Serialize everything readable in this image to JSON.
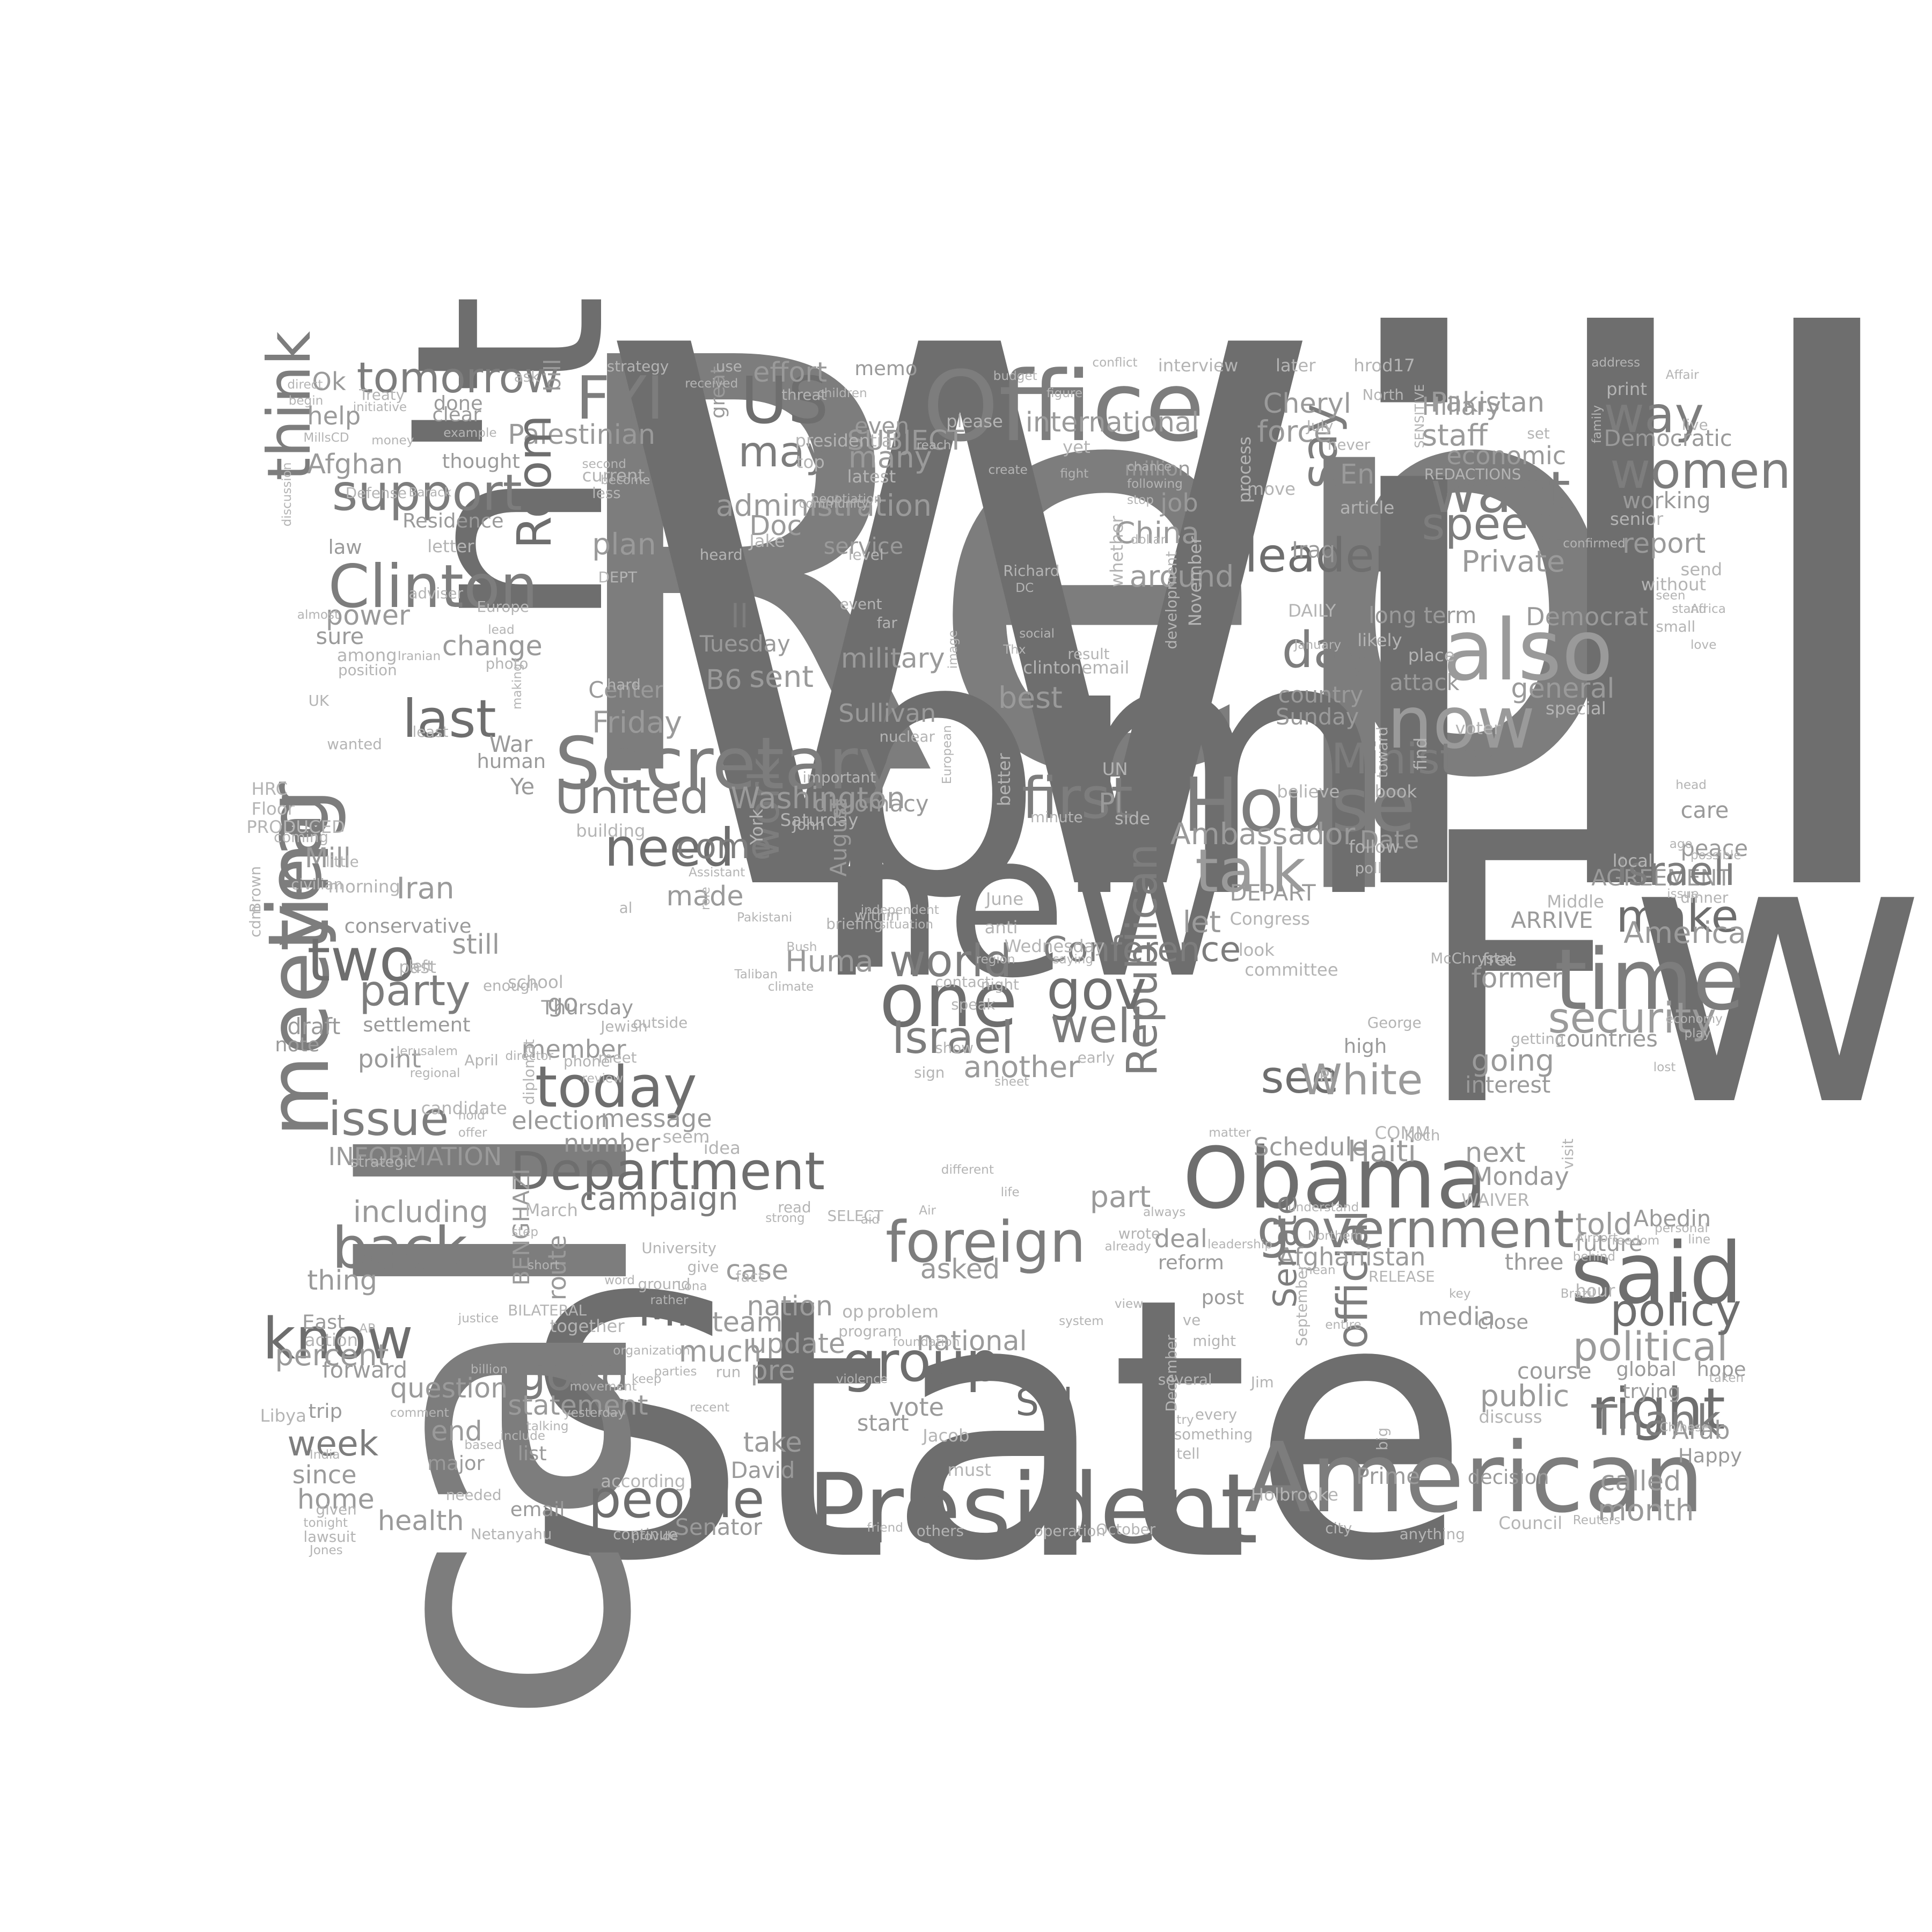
{
  "colors": {
    "background": "#ffffff",
    "tone_dark": "#6e6e6e",
    "tone_mid": "#7d7d7d",
    "tone_light": "#9a9a9a",
    "tone_faint": "#b4b4b4"
  },
  "words": [
    {
      "text": "State"
    },
    {
      "text": "Rep"
    },
    {
      "text": "Will"
    },
    {
      "text": "Fw"
    },
    {
      "text": "call"
    },
    {
      "text": "n't"
    },
    {
      "text": "pm"
    },
    {
      "text": "new"
    },
    {
      "text": "Office"
    },
    {
      "text": "President"
    },
    {
      "text": "American"
    },
    {
      "text": "Secretary"
    },
    {
      "text": "House"
    },
    {
      "text": "Obama"
    },
    {
      "text": "also"
    },
    {
      "text": "now"
    },
    {
      "text": "said"
    },
    {
      "text": "time"
    },
    {
      "text": "one"
    },
    {
      "text": "year"
    },
    {
      "text": "meeting"
    },
    {
      "text": "US"
    },
    {
      "text": "FYI"
    },
    {
      "text": "Clinton"
    },
    {
      "text": "think"
    },
    {
      "text": "tomorrow"
    },
    {
      "text": "first"
    },
    {
      "text": "Department"
    },
    {
      "text": "government"
    },
    {
      "text": "foreign"
    },
    {
      "text": "today"
    },
    {
      "text": "people"
    },
    {
      "text": "right"
    },
    {
      "text": "back"
    },
    {
      "text": "know"
    },
    {
      "text": "issue"
    },
    {
      "text": "two"
    },
    {
      "text": "last"
    },
    {
      "text": "support"
    },
    {
      "text": "want"
    },
    {
      "text": "speech"
    },
    {
      "text": "women"
    },
    {
      "text": "way"
    },
    {
      "text": "say"
    },
    {
      "text": "talk"
    },
    {
      "text": "need"
    },
    {
      "text": "United"
    },
    {
      "text": "leader"
    },
    {
      "text": "day"
    },
    {
      "text": "Minister"
    },
    {
      "text": "security"
    },
    {
      "text": "political"
    },
    {
      "text": "policy"
    },
    {
      "text": "group"
    },
    {
      "text": "Republican"
    },
    {
      "text": "official"
    },
    {
      "text": "party"
    },
    {
      "text": "gov"
    },
    {
      "text": "world"
    },
    {
      "text": "Israel"
    },
    {
      "text": "well"
    },
    {
      "text": "make"
    },
    {
      "text": "see"
    },
    {
      "text": "White"
    },
    {
      "text": "good"
    },
    {
      "text": "week"
    },
    {
      "text": "may"
    },
    {
      "text": "work"
    },
    {
      "text": "Mr"
    },
    {
      "text": "Thank"
    },
    {
      "text": "Sid"
    },
    {
      "text": "Palestinian"
    },
    {
      "text": "effort"
    },
    {
      "text": "memo"
    },
    {
      "text": "even"
    },
    {
      "text": "administration"
    },
    {
      "text": "international"
    },
    {
      "text": "Hillary"
    },
    {
      "text": "Pakistan"
    },
    {
      "text": "Cheryl"
    },
    {
      "text": "staff"
    },
    {
      "text": "economic"
    },
    {
      "text": "Democratic"
    },
    {
      "text": "working"
    },
    {
      "text": "report"
    },
    {
      "text": "senior"
    },
    {
      "text": "Private"
    },
    {
      "text": "Democrat"
    },
    {
      "text": "long term"
    },
    {
      "text": "general"
    },
    {
      "text": "country"
    },
    {
      "text": "attack"
    },
    {
      "text": "Sunday"
    },
    {
      "text": "special"
    },
    {
      "text": "Ambassador"
    },
    {
      "text": "Date"
    },
    {
      "text": "DEPART"
    },
    {
      "text": "AGREEMENT"
    },
    {
      "text": "ARRIVE"
    },
    {
      "text": "America"
    },
    {
      "text": "former"
    },
    {
      "text": "McChrystal"
    },
    {
      "text": "countries"
    },
    {
      "text": "interest"
    },
    {
      "text": "going"
    },
    {
      "text": "Haiti"
    },
    {
      "text": "Schedule"
    },
    {
      "text": "next"
    },
    {
      "text": "Monday"
    },
    {
      "text": "WAIVER"
    },
    {
      "text": "Abedin"
    },
    {
      "text": "told"
    },
    {
      "text": "future"
    },
    {
      "text": "Afghanistan"
    },
    {
      "text": "three"
    },
    {
      "text": "deal"
    },
    {
      "text": "reform"
    },
    {
      "text": "post"
    },
    {
      "text": "part"
    },
    {
      "text": "public"
    },
    {
      "text": "course"
    },
    {
      "text": "called"
    },
    {
      "text": "month"
    },
    {
      "text": "media"
    },
    {
      "text": "Senate"
    },
    {
      "text": "September"
    },
    {
      "text": "December"
    },
    {
      "text": "Holbrooke"
    },
    {
      "text": "Council"
    },
    {
      "text": "Reuters"
    },
    {
      "text": "decision"
    },
    {
      "text": "Prime"
    },
    {
      "text": "Arab"
    },
    {
      "text": "Happy"
    },
    {
      "text": "global"
    },
    {
      "text": "hope"
    },
    {
      "text": "Washington"
    },
    {
      "text": "Friday"
    },
    {
      "text": "Center"
    },
    {
      "text": "Tuesday"
    },
    {
      "text": "B6"
    },
    {
      "text": "ll"
    },
    {
      "text": "sent"
    },
    {
      "text": "plan"
    },
    {
      "text": "Doc"
    },
    {
      "text": "Jake"
    },
    {
      "text": "SUBJECT"
    },
    {
      "text": "many"
    },
    {
      "text": "service"
    },
    {
      "text": "military"
    },
    {
      "text": "Sullivan"
    },
    {
      "text": "best"
    },
    {
      "text": "Pl"
    },
    {
      "text": "China"
    },
    {
      "text": "around"
    },
    {
      "text": "job"
    },
    {
      "text": "force"
    },
    {
      "text": "En"
    },
    {
      "text": "Iraq"
    },
    {
      "text": "DAILY"
    },
    {
      "text": "million"
    },
    {
      "text": "Room"
    },
    {
      "text": "come"
    },
    {
      "text": "made"
    },
    {
      "text": "Huma"
    },
    {
      "text": "Conference"
    },
    {
      "text": "let"
    },
    {
      "text": "another"
    },
    {
      "text": "Israeli"
    },
    {
      "text": "campaign"
    },
    {
      "text": "election"
    },
    {
      "text": "message"
    },
    {
      "text": "number"
    },
    {
      "text": "INFORMATION"
    },
    {
      "text": "including"
    },
    {
      "text": "thing"
    },
    {
      "text": "percent"
    },
    {
      "text": "forward"
    },
    {
      "text": "question"
    },
    {
      "text": "statement"
    },
    {
      "text": "end"
    },
    {
      "text": "since"
    },
    {
      "text": "home"
    },
    {
      "text": "health"
    },
    {
      "text": "email"
    },
    {
      "text": "Senator"
    },
    {
      "text": "David"
    },
    {
      "text": "take"
    },
    {
      "text": "pre"
    },
    {
      "text": "update"
    },
    {
      "text": "much"
    },
    {
      "text": "nation"
    },
    {
      "text": "case"
    },
    {
      "text": "asked"
    },
    {
      "text": "team"
    },
    {
      "text": "national"
    },
    {
      "text": "vote"
    },
    {
      "text": "start"
    },
    {
      "text": "BENGHAZI"
    },
    {
      "text": "route"
    },
    {
      "text": "Afghan"
    },
    {
      "text": "power"
    },
    {
      "text": "sure"
    },
    {
      "text": "help"
    },
    {
      "text": "Residence"
    },
    {
      "text": "change"
    },
    {
      "text": "War"
    },
    {
      "text": "Iran"
    },
    {
      "text": "Mill"
    },
    {
      "text": "still"
    },
    {
      "text": "conservative"
    },
    {
      "text": "point"
    },
    {
      "text": "member"
    },
    {
      "text": "Thursday"
    },
    {
      "text": "draft"
    },
    {
      "text": "settlement"
    },
    {
      "text": "note"
    },
    {
      "text": "morning"
    },
    {
      "text": "go"
    },
    {
      "text": "Ok"
    },
    {
      "text": "done"
    },
    {
      "text": "thought"
    },
    {
      "text": "letter"
    },
    {
      "text": "bill"
    },
    {
      "text": "great"
    },
    {
      "text": "HRC"
    },
    {
      "text": "Floor"
    },
    {
      "text": "PRODUCED"
    },
    {
      "text": "Ye"
    },
    {
      "text": "clear"
    },
    {
      "text": "law"
    },
    {
      "text": "among"
    },
    {
      "text": "position"
    },
    {
      "text": "UK"
    },
    {
      "text": "wanted"
    },
    {
      "text": "human"
    },
    {
      "text": "strategy"
    },
    {
      "text": "use"
    },
    {
      "text": "presidential"
    },
    {
      "text": "top"
    },
    {
      "text": "latest"
    },
    {
      "text": "please"
    },
    {
      "text": "yet"
    },
    {
      "text": "level"
    },
    {
      "text": "event"
    },
    {
      "text": "far"
    },
    {
      "text": "nuclear"
    },
    {
      "text": "important"
    },
    {
      "text": "diplomacy"
    },
    {
      "text": "Saturday"
    },
    {
      "text": "York"
    },
    {
      "text": "John"
    },
    {
      "text": "al"
    },
    {
      "text": "building"
    },
    {
      "text": "hard"
    },
    {
      "text": "August"
    },
    {
      "text": "June"
    },
    {
      "text": "anti"
    },
    {
      "text": "Wednesday"
    },
    {
      "text": "night"
    },
    {
      "text": "show"
    },
    {
      "text": "speak"
    },
    {
      "text": "better"
    },
    {
      "text": "minute"
    },
    {
      "text": "side"
    },
    {
      "text": "UN"
    },
    {
      "text": "clintonemail"
    },
    {
      "text": "whether"
    },
    {
      "text": "development"
    },
    {
      "text": "November"
    },
    {
      "text": "process"
    },
    {
      "text": "later"
    },
    {
      "text": "hrod17"
    },
    {
      "text": "North"
    },
    {
      "text": "July"
    },
    {
      "text": "never"
    },
    {
      "text": "article"
    },
    {
      "text": "move"
    },
    {
      "text": "poll"
    },
    {
      "text": "follow"
    },
    {
      "text": "believe"
    },
    {
      "text": "book"
    },
    {
      "text": "find"
    },
    {
      "text": "toward"
    },
    {
      "text": "place"
    },
    {
      "text": "likely"
    },
    {
      "text": "voter"
    },
    {
      "text": "care"
    },
    {
      "text": "peace"
    },
    {
      "text": "local"
    },
    {
      "text": "possible"
    },
    {
      "text": "Middle"
    },
    {
      "text": "dinner"
    },
    {
      "text": "free"
    },
    {
      "text": "committee"
    },
    {
      "text": "Congress"
    },
    {
      "text": "look"
    },
    {
      "text": "high"
    },
    {
      "text": "George"
    },
    {
      "text": "Koch"
    },
    {
      "text": "visit"
    },
    {
      "text": "close"
    },
    {
      "text": "trying"
    },
    {
      "text": "discuss"
    },
    {
      "text": "hour"
    },
    {
      "text": "print"
    },
    {
      "text": "live"
    },
    {
      "text": "address"
    },
    {
      "text": "set"
    },
    {
      "text": "family"
    },
    {
      "text": "send"
    },
    {
      "text": "without"
    },
    {
      "text": "small"
    },
    {
      "text": "REDACTIONS"
    },
    {
      "text": "SENSITIVE"
    },
    {
      "text": "confirmed"
    },
    {
      "text": "Libya"
    },
    {
      "text": "trip"
    },
    {
      "text": "comment"
    },
    {
      "text": "major"
    },
    {
      "text": "list"
    },
    {
      "text": "according"
    },
    {
      "text": "continue"
    },
    {
      "text": "Netanyahu"
    },
    {
      "text": "given"
    },
    {
      "text": "idea"
    },
    {
      "text": "seem"
    },
    {
      "text": "March"
    },
    {
      "text": "BILATERAL"
    },
    {
      "text": "together"
    },
    {
      "text": "East"
    },
    {
      "text": "action"
    },
    {
      "text": "candidate"
    },
    {
      "text": "strategic"
    },
    {
      "text": "school"
    },
    {
      "text": "enough"
    },
    {
      "text": "left"
    },
    {
      "text": "past"
    },
    {
      "text": "coming"
    },
    {
      "text": "little"
    },
    {
      "text": "civilian"
    },
    {
      "text": "Brown"
    },
    {
      "text": "cdm"
    },
    {
      "text": "Defense"
    },
    {
      "text": "Treaty"
    },
    {
      "text": "initiative"
    },
    {
      "text": "ask"
    },
    {
      "text": "example"
    },
    {
      "text": "MillsCD"
    },
    {
      "text": "money"
    },
    {
      "text": "Barack"
    },
    {
      "text": "adviser"
    },
    {
      "text": "Europe"
    },
    {
      "text": "photo"
    },
    {
      "text": "lead"
    },
    {
      "text": "least"
    },
    {
      "text": "Iranian"
    },
    {
      "text": "making"
    },
    {
      "text": "received"
    },
    {
      "text": "threat"
    },
    {
      "text": "children"
    },
    {
      "text": "budget"
    },
    {
      "text": "figure"
    },
    {
      "text": "reach"
    },
    {
      "text": "create"
    },
    {
      "text": "following"
    },
    {
      "text": "stop"
    },
    {
      "text": "chance"
    },
    {
      "text": "dollar"
    },
    {
      "text": "conflict"
    },
    {
      "text": "interview"
    },
    {
      "text": "fight"
    },
    {
      "text": "European"
    },
    {
      "text": "Bush"
    },
    {
      "text": "Assistant"
    },
    {
      "text": "Jerusalem"
    },
    {
      "text": "regional"
    },
    {
      "text": "April"
    },
    {
      "text": "phone"
    },
    {
      "text": "diplomat"
    },
    {
      "text": "Jewish"
    },
    {
      "text": "outside"
    },
    {
      "text": "meet"
    },
    {
      "text": "director"
    },
    {
      "text": "review"
    },
    {
      "text": "read"
    },
    {
      "text": "SELECT"
    },
    {
      "text": "strong"
    },
    {
      "text": "Lona"
    },
    {
      "text": "rather"
    },
    {
      "text": "word"
    },
    {
      "text": "University"
    },
    {
      "text": "ground"
    },
    {
      "text": "give"
    },
    {
      "text": "fact"
    },
    {
      "text": "run"
    },
    {
      "text": "recent"
    },
    {
      "text": "keep"
    },
    {
      "text": "parties"
    },
    {
      "text": "op"
    },
    {
      "text": "problem"
    },
    {
      "text": "program"
    },
    {
      "text": "foundation"
    },
    {
      "text": "violence"
    },
    {
      "text": "Jacob"
    },
    {
      "text": "must"
    },
    {
      "text": "others"
    },
    {
      "text": "operation"
    },
    {
      "text": "friend"
    },
    {
      "text": "October"
    },
    {
      "text": "something"
    },
    {
      "text": "every"
    },
    {
      "text": "several"
    },
    {
      "text": "try"
    },
    {
      "text": "tell"
    },
    {
      "text": "might"
    },
    {
      "text": "ve"
    },
    {
      "text": "Jim"
    },
    {
      "text": "city"
    },
    {
      "text": "anything"
    },
    {
      "text": "big"
    },
    {
      "text": "mean"
    },
    {
      "text": "RELEASE"
    },
    {
      "text": "COMM"
    },
    {
      "text": "Pi"
    },
    {
      "text": "leadership"
    },
    {
      "text": "view"
    },
    {
      "text": "system"
    },
    {
      "text": "wrote"
    },
    {
      "text": "already"
    },
    {
      "text": "life"
    },
    {
      "text": "different"
    },
    {
      "text": "aid"
    },
    {
      "text": "Air"
    },
    {
      "text": "always"
    },
    {
      "text": "matter"
    },
    {
      "text": "understand"
    },
    {
      "text": "Northern"
    },
    {
      "text": "getting"
    },
    {
      "text": "economy"
    },
    {
      "text": "play"
    },
    {
      "text": "lost"
    },
    {
      "text": "Chinese"
    },
    {
      "text": "taken"
    },
    {
      "text": "Airport"
    },
    {
      "text": "behind"
    },
    {
      "text": "freedom"
    },
    {
      "text": "personal"
    },
    {
      "text": "line"
    },
    {
      "text": "head"
    },
    {
      "text": "ago"
    },
    {
      "text": "issue"
    },
    {
      "text": "entire"
    },
    {
      "text": "Brazil"
    },
    {
      "text": "key"
    },
    {
      "text": "current"
    },
    {
      "text": "second"
    },
    {
      "text": "less"
    },
    {
      "text": "become"
    },
    {
      "text": "DEPT"
    },
    {
      "text": "heard"
    },
    {
      "text": "community"
    },
    {
      "text": "negotiation"
    },
    {
      "text": "briefing"
    },
    {
      "text": "within"
    },
    {
      "text": "situation"
    },
    {
      "text": "contact"
    },
    {
      "text": "region"
    },
    {
      "text": "saying"
    },
    {
      "text": "early"
    },
    {
      "text": "sign"
    },
    {
      "text": "sheet"
    },
    {
      "text": "role"
    },
    {
      "text": "Taliban"
    },
    {
      "text": "climate"
    },
    {
      "text": "Pakistani"
    },
    {
      "text": "independent"
    },
    {
      "text": "image"
    },
    {
      "text": "result"
    },
    {
      "text": "Thx"
    },
    {
      "text": "Richard"
    },
    {
      "text": "DC"
    },
    {
      "text": "social"
    },
    {
      "text": "January"
    },
    {
      "text": "stand"
    },
    {
      "text": "seen"
    },
    {
      "text": "Africa"
    },
    {
      "text": "love"
    },
    {
      "text": "Affair"
    },
    {
      "text": "direct"
    },
    {
      "text": "begin"
    },
    {
      "text": "almost"
    },
    {
      "text": "discussion"
    },
    {
      "text": "AP"
    },
    {
      "text": "lawsuit"
    },
    {
      "text": "tonight"
    },
    {
      "text": "Jones"
    },
    {
      "text": "India"
    },
    {
      "text": "justice"
    },
    {
      "text": "billion"
    },
    {
      "text": "based"
    },
    {
      "text": "needed"
    },
    {
      "text": "include"
    },
    {
      "text": "talking"
    },
    {
      "text": "short"
    },
    {
      "text": "step"
    },
    {
      "text": "hold"
    },
    {
      "text": "offer"
    },
    {
      "text": "provide"
    },
    {
      "text": "movement"
    },
    {
      "text": "yesterday"
    },
    {
      "text": "organization"
    }
  ]
}
